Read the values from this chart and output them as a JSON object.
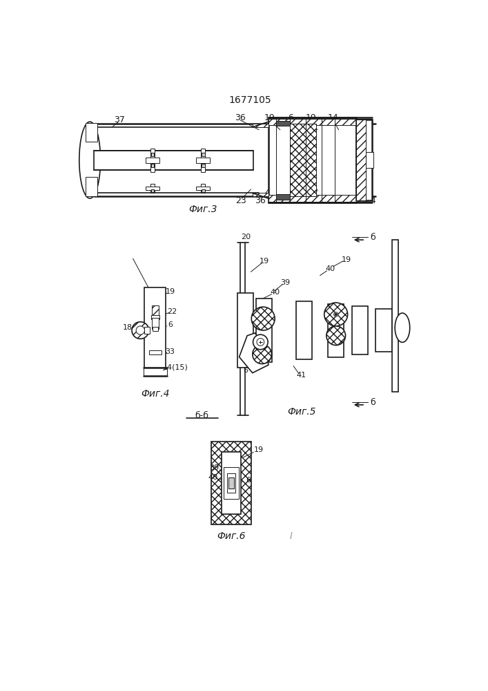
{
  "title": "1677105",
  "bg_color": "#ffffff",
  "line_color": "#1a1a1a",
  "fig3_caption": "Фиг.3",
  "fig4_caption": "Фиг.4",
  "fig5_caption": "Фиг.5",
  "fig6_caption": "Фиг.6",
  "fig6_section": "б-б"
}
